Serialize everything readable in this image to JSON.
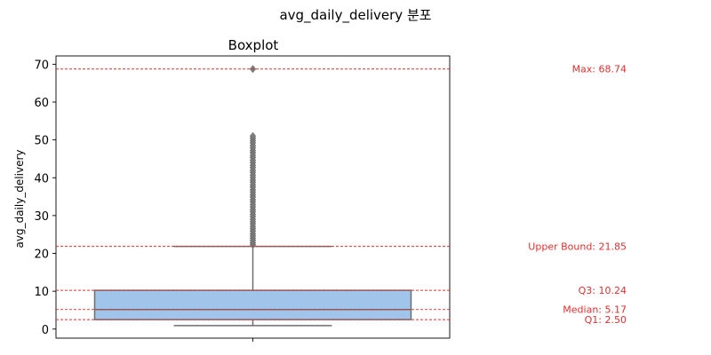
{
  "chart_data": {
    "type": "box",
    "suptitle": "avg_daily_delivery 분포",
    "title": "Boxplot",
    "xlabel": "",
    "ylabel": "avg_daily_delivery",
    "ylim": [
      -2.4,
      72.2
    ],
    "yticks": [
      0,
      10,
      20,
      30,
      40,
      50,
      60,
      70
    ],
    "stats": {
      "min": 0.9,
      "q1": 2.5,
      "median": 5.17,
      "q3": 10.24,
      "whisker_high": 21.85,
      "max": 68.74
    },
    "outliers": [
      22.3,
      22.8,
      23.4,
      24.0,
      24.6,
      25.2,
      25.9,
      26.5,
      27.1,
      27.8,
      28.4,
      29.0,
      29.7,
      30.3,
      31.0,
      31.6,
      32.3,
      32.9,
      33.6,
      34.2,
      34.9,
      35.5,
      36.2,
      36.8,
      37.5,
      38.1,
      38.8,
      39.4,
      40.1,
      40.7,
      41.4,
      42.0,
      42.7,
      43.3,
      44.0,
      44.6,
      45.3,
      45.9,
      46.6,
      47.2,
      47.9,
      48.5,
      49.2,
      49.8,
      50.4,
      51.0,
      68.74
    ],
    "reference_lines": [
      {
        "label": "Max: 68.74",
        "value": 68.74
      },
      {
        "label": "Upper Bound: 21.85",
        "value": 21.85
      },
      {
        "label": "Q3: 10.24",
        "value": 10.24
      },
      {
        "label": "Median: 5.17",
        "value": 5.17
      },
      {
        "label": "Q1: 2.50",
        "value": 2.5
      }
    ],
    "colors": {
      "box_fill": "#a1c4ea",
      "box_edge": "#6e6e6e",
      "reference_line": "#e03030",
      "annotation_text": "#e03030",
      "outlier": "#7f7f7f"
    }
  }
}
